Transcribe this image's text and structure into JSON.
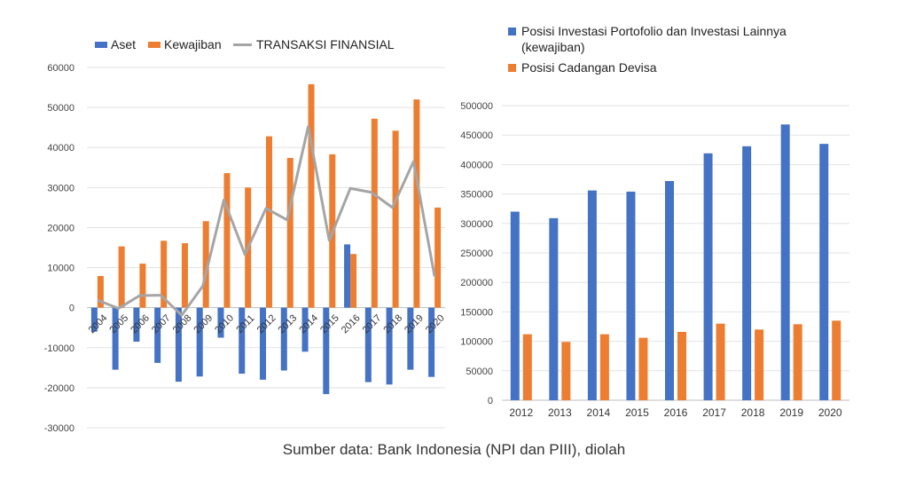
{
  "caption": "Sumber data: Bank Indonesia (NPI dan PIII), diolah",
  "chart_data": [
    {
      "type": "bar",
      "title": "",
      "xlabel": "",
      "ylabel": "",
      "legend_position": "top-left",
      "grid": true,
      "ylim": [
        -30000,
        60000
      ],
      "yticks": [
        "60000",
        "50000",
        "40000",
        "30000",
        "20000",
        "10000",
        "0",
        "-10000",
        "-20000",
        "-30000"
      ],
      "categories": [
        "2004",
        "2005",
        "2006",
        "2007",
        "2008",
        "2009",
        "2010",
        "2011",
        "2012",
        "2013",
        "2014",
        "2015",
        "2016",
        "2017",
        "2018",
        "2019",
        "2020"
      ],
      "series": [
        {
          "name": "Aset",
          "kind": "bar",
          "color": "#4472C4",
          "values": [
            -6000,
            -15500,
            -8500,
            -13800,
            -18500,
            -17200,
            -7500,
            -16500,
            -18000,
            -15700,
            -11000,
            -21600,
            15800,
            -18600,
            -19200,
            -15500,
            -17300
          ]
        },
        {
          "name": "Kewajiban",
          "kind": "bar",
          "color": "#ED7D31",
          "values": [
            7900,
            15300,
            11000,
            16700,
            16100,
            21600,
            33600,
            30000,
            42800,
            37400,
            55800,
            38300,
            13400,
            47200,
            44200,
            52000,
            25000
          ]
        },
        {
          "name": "TRANSAKSI FINANSIAL",
          "kind": "line",
          "color": "#A5A5A5",
          "values": [
            1900,
            -200,
            3000,
            3100,
            -1900,
            5400,
            26900,
            13300,
            24800,
            21900,
            45200,
            16800,
            29800,
            28800,
            25000,
            36500,
            7800
          ]
        }
      ]
    },
    {
      "type": "bar",
      "title": "",
      "xlabel": "",
      "ylabel": "",
      "legend_position": "top",
      "grid": true,
      "ylim": [
        0,
        500000
      ],
      "yticks": [
        "500000",
        "450000",
        "400000",
        "350000",
        "300000",
        "250000",
        "200000",
        "150000",
        "100000",
        "50000",
        "0"
      ],
      "categories": [
        "2012",
        "2013",
        "2014",
        "2015",
        "2016",
        "2017",
        "2018",
        "2019",
        "2020"
      ],
      "series": [
        {
          "name": "Posisi Investasi Portofolio dan Investasi Lainnya (kewajiban)",
          "legend_lines": [
            "Posisi Investasi Portofolio dan Investasi Lainnya",
            "(kewajiban)"
          ],
          "color": "#4472C4",
          "values": [
            320000,
            309000,
            356000,
            354000,
            372000,
            419000,
            431000,
            468000,
            435000
          ]
        },
        {
          "name": "Posisi Cadangan Devisa",
          "legend_lines": [
            "Posisi Cadangan Devisa"
          ],
          "color": "#ED7D31",
          "values": [
            112000,
            99000,
            112000,
            106000,
            116000,
            130000,
            120000,
            129000,
            135000
          ]
        }
      ]
    }
  ]
}
